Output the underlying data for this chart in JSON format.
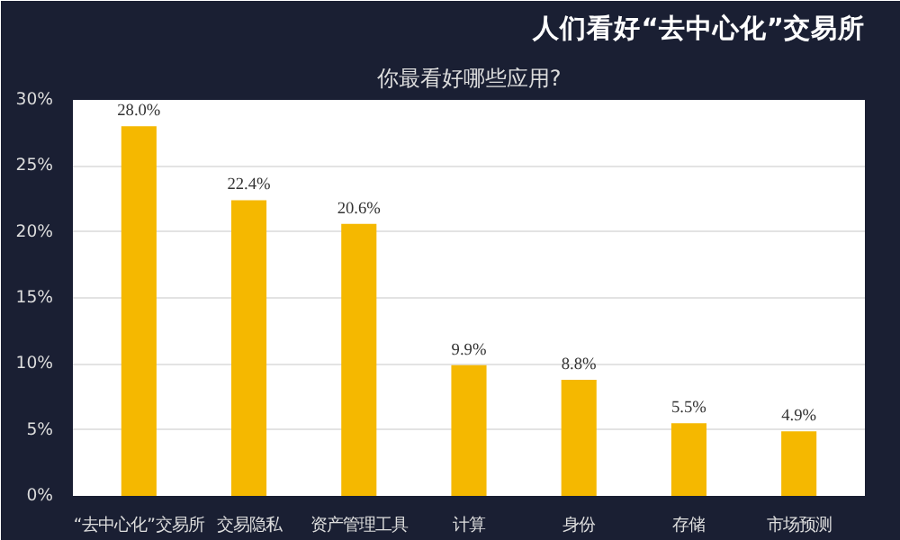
{
  "chart_data": {
    "type": "bar",
    "title": "人们看好“去中心化”交易所",
    "subtitle": "你最看好哪些应用?",
    "categories": [
      "“去中心化”交易所",
      "交易隐私",
      "资产管理工具",
      "计算",
      "身份",
      "存储",
      "市场预测"
    ],
    "values": [
      28.0,
      22.4,
      20.6,
      9.9,
      8.8,
      5.5,
      4.9
    ],
    "value_labels": [
      "28.0%",
      "22.4%",
      "20.6%",
      "9.9%",
      "8.8%",
      "5.5%",
      "4.9%"
    ],
    "color": "#f5b800",
    "ylim": [
      0,
      30
    ],
    "yticks": [
      {
        "value": 0,
        "label": "0%"
      },
      {
        "value": 5,
        "label": "5%"
      },
      {
        "value": 10,
        "label": "10%"
      },
      {
        "value": 15,
        "label": "15%"
      },
      {
        "value": 20,
        "label": "20%"
      },
      {
        "value": 25,
        "label": "25%"
      },
      {
        "value": 30,
        "label": "30%"
      }
    ],
    "grid": "y"
  }
}
